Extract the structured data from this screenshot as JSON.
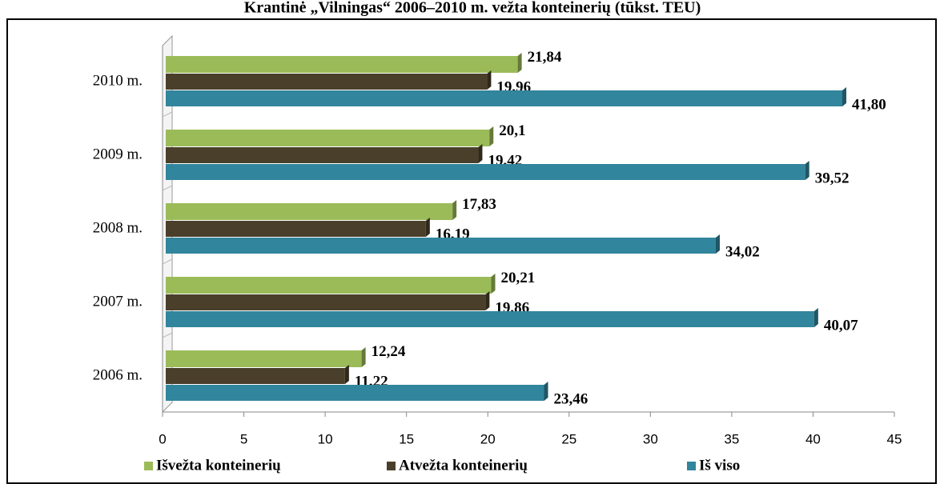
{
  "chart_data": {
    "type": "bar",
    "orientation": "horizontal",
    "title": "Krantinė „Vilningas“ 2006–2010 m. vežta konteinerių (tūkst. TEU)",
    "categories": [
      "2006 m.",
      "2007 m.",
      "2008 m.",
      "2009 m.",
      "2010 m."
    ],
    "series": [
      {
        "name": "Išvežta konteinerių",
        "color": "#9bbb59",
        "values": [
          12.24,
          20.21,
          17.83,
          20.1,
          21.84
        ],
        "value_labels": [
          "12,24",
          "20,21",
          "17,83",
          "20,1",
          "21,84"
        ]
      },
      {
        "name": "Atvežta konteinerių",
        "color": "#4a3f2a",
        "values": [
          11.22,
          19.86,
          16.19,
          19.42,
          19.96
        ],
        "value_labels": [
          "11,22",
          "19,86",
          "16,19",
          "19,42",
          "19,96"
        ]
      },
      {
        "name": "Iš viso",
        "color": "#31859c",
        "values": [
          23.46,
          40.07,
          34.02,
          39.52,
          41.8
        ],
        "value_labels": [
          "23,46",
          "40,07",
          "34,02",
          "39,52",
          "41,80"
        ]
      }
    ],
    "xlim": [
      0,
      45
    ],
    "xticks": [
      0,
      5,
      10,
      15,
      20,
      25,
      30,
      35,
      40,
      45
    ],
    "legend": "bottom"
  }
}
